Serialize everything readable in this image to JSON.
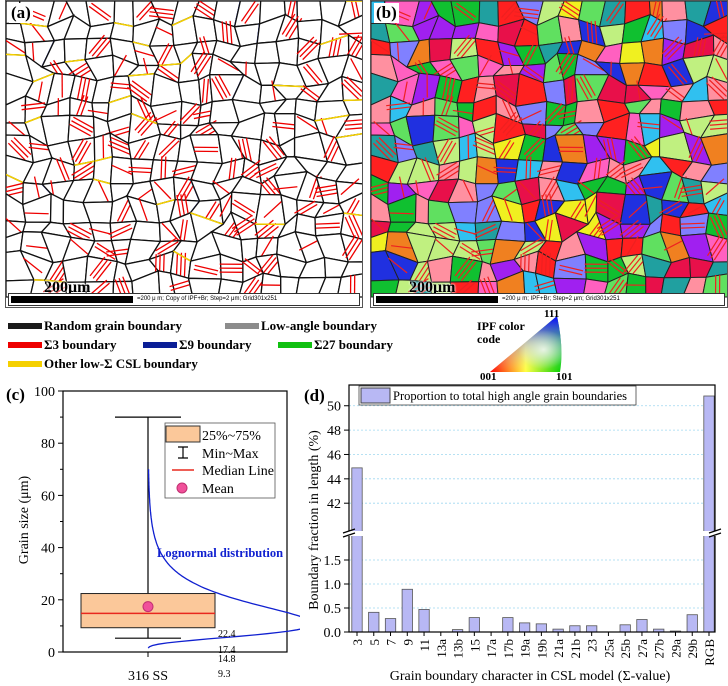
{
  "panels": {
    "a": {
      "label": "(a)",
      "scale_length": "200μm",
      "scale_info": "=200 μ m; Copy of IPF+Br; Step=2 μm; Grid301x251"
    },
    "b": {
      "label": "(b)",
      "scale_length": "200μm",
      "scale_info": "=200 μ m; IPF+Br; Step=2 μm; Grid301x251"
    }
  },
  "legend": {
    "items": [
      {
        "label": "Random grain boundary",
        "color": "#1a1a1a"
      },
      {
        "label": "Low-angle boundary",
        "color": "#8c8c8c"
      },
      {
        "label": "Σ3 boundary",
        "color": "#ee0000"
      },
      {
        "label": "Σ9 boundary",
        "color": "#0a1e96"
      },
      {
        "label": "Σ27 boundary",
        "color": "#10c010"
      },
      {
        "label": "Other low-Σ CSL boundary",
        "color": "#f5d000"
      }
    ],
    "ipf": {
      "title_line1": "IPF color",
      "title_line2": "code",
      "v001": "001",
      "v101": "101",
      "v111": "111"
    }
  },
  "chart_data": [
    {
      "type": "box",
      "panel_label": "(c)",
      "ylabel": "Grain size (μm)",
      "ylim": [
        0,
        100
      ],
      "yticks": [
        "0",
        "20",
        "40",
        "60",
        "80",
        "100"
      ],
      "category": "316 SS",
      "stats": {
        "min": 5.3,
        "q1": 9.3,
        "median": 14.8,
        "mean": 17.4,
        "q3": 22.4,
        "max": 90
      },
      "value_labels": [
        "22.4",
        "17.4",
        "14.8",
        "9.3"
      ],
      "legend": [
        "25%~75%",
        "Min~Max",
        "Median Line",
        "Mean"
      ],
      "annotation": "Lognormal distribution",
      "colors": {
        "box": "#fbc89a",
        "median": "#e8281e",
        "mean": "#f0509a",
        "curve": "#1020d0"
      }
    },
    {
      "type": "bar",
      "panel_label": "(d)",
      "xlabel": "Grain boundary character in CSL model (Σ-value)",
      "ylabel": "Boundary fraction in length (%)",
      "legend": [
        "Proportion to total high angle grain boundaries"
      ],
      "categories": [
        "3",
        "5",
        "7",
        "9",
        "11",
        "13a",
        "13b",
        "15",
        "17a",
        "17b",
        "19a",
        "19b",
        "21a",
        "21b",
        "23",
        "25a",
        "25b",
        "27a",
        "27b",
        "29a",
        "29b",
        "RGB"
      ],
      "values": [
        44.9,
        0.41,
        0.28,
        0.89,
        0.47,
        0,
        0.05,
        0.3,
        0,
        0.3,
        0.19,
        0.17,
        0.06,
        0.13,
        0.13,
        0,
        0.15,
        0.26,
        0.06,
        0.02,
        0.36,
        50.8
      ],
      "broken_axis": {
        "lower": [
          0,
          2.0
        ],
        "upper": [
          39.8,
          50.8
        ]
      },
      "yticks_lower": [
        "0.0",
        "0.5",
        "1.0",
        "1.5"
      ],
      "yticks_upper": [
        "42",
        "44",
        "46",
        "48",
        "50"
      ],
      "bar_color": "#b8b8f4"
    }
  ]
}
